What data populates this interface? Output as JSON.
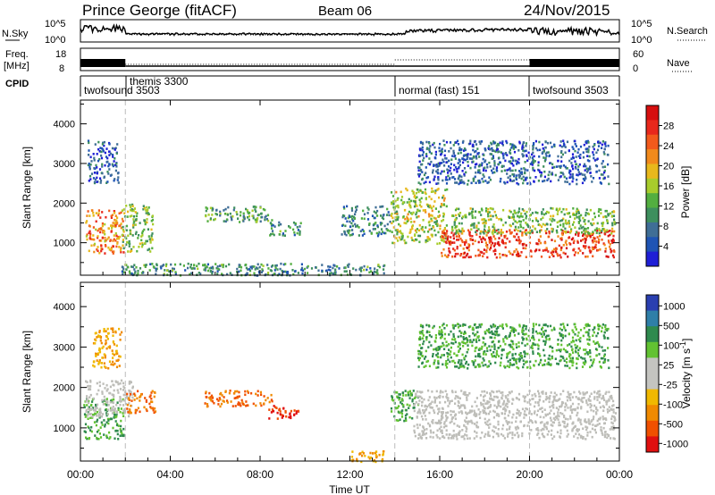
{
  "header": {
    "station": "Prince George (fitACF)",
    "beam": "Beam 06",
    "date": "24/Nov/2015"
  },
  "noise_panel": {
    "left_label": "N.Sky",
    "right_label": "N.Search",
    "y_ticks": [
      "10^5",
      "10^0"
    ]
  },
  "freq_panel": {
    "left_label_1": "Freq.",
    "left_label_2": "[MHz]",
    "right_label": "Nave",
    "left_ticks": [
      "18",
      "8"
    ],
    "right_ticks": [
      "60",
      "0"
    ]
  },
  "cpid_panel": {
    "label": "CPID",
    "programs": [
      {
        "name": "twofsound 3503",
        "start_hour": 0.0
      },
      {
        "name": "themis 3300",
        "start_hour": 2.0
      },
      {
        "name": "normal (fast) 151",
        "start_hour": 14.0
      },
      {
        "name": "twofsound 3503",
        "start_hour": 20.0
      }
    ]
  },
  "axes": {
    "ylabel": "Slant Range [km]",
    "xlabel": "Time UT",
    "x_tick_labels": [
      "00:00",
      "04:00",
      "08:00",
      "12:00",
      "16:00",
      "20:00",
      "00:00"
    ],
    "y_tick_labels": [
      "1000",
      "2000",
      "3000",
      "4000"
    ]
  },
  "colorbars": {
    "power": {
      "label": "Power [dB]",
      "tick_labels": [
        "4",
        "8",
        "12",
        "16",
        "20",
        "24",
        "28"
      ],
      "colors": [
        "#1f1fd6",
        "#1f54b4",
        "#3f6e96",
        "#3e8f5e",
        "#53ae40",
        "#a8cc2c",
        "#e8b81c",
        "#f18a1c",
        "#f25a1c",
        "#e8281c",
        "#d60f0f"
      ]
    },
    "velocity": {
      "label": "Velocity [m s",
      "label_sup": "-1",
      "label_end": "]",
      "tick_labels": [
        "1000",
        "500",
        "100",
        "25",
        "-25",
        "-100",
        "-500",
        "-1000"
      ],
      "colors": [
        "#2a3fb0",
        "#2f7fa8",
        "#2f8a4e",
        "#62c232",
        "#c4c4c0",
        "#c4c4c0",
        "#f0b800",
        "#f08a00",
        "#f05000",
        "#e01010"
      ],
      "ground_scatter_color": "#bdbdb8"
    }
  },
  "chart_data": {
    "type": "heatmap",
    "x_unit": "hours UT",
    "xlim": [
      0,
      24
    ],
    "ylim": [
      180,
      4600
    ],
    "power_panel": {
      "regions": [
        {
          "t0": 0.2,
          "t1": 1.9,
          "r0": 750,
          "r1": 1850,
          "value": 22
        },
        {
          "t0": 0.3,
          "t1": 1.7,
          "r0": 2500,
          "r1": 3600,
          "value": 6
        },
        {
          "t0": 1.8,
          "t1": 3.2,
          "r0": 800,
          "r1": 2000,
          "value": 14
        },
        {
          "t0": 5.5,
          "t1": 8.5,
          "r0": 1550,
          "r1": 1950,
          "value": 12
        },
        {
          "t0": 8.3,
          "t1": 9.8,
          "r0": 1200,
          "r1": 1550,
          "value": 10
        },
        {
          "t0": 1.8,
          "t1": 13.5,
          "r0": 200,
          "r1": 500,
          "value": 10
        },
        {
          "t0": 11.6,
          "t1": 13.8,
          "r0": 1200,
          "r1": 1950,
          "value": 9
        },
        {
          "t0": 13.8,
          "t1": 16.3,
          "r0": 1000,
          "r1": 2400,
          "value": 16
        },
        {
          "t0": 16.0,
          "t1": 23.8,
          "r0": 650,
          "r1": 1350,
          "value": 26
        },
        {
          "t0": 16.5,
          "t1": 23.8,
          "r0": 1250,
          "r1": 1900,
          "value": 14
        },
        {
          "t0": 15.0,
          "t1": 23.5,
          "r0": 2500,
          "r1": 3600,
          "value": 6
        }
      ]
    },
    "velocity_panel": {
      "regions": [
        {
          "t0": 0.1,
          "t1": 1.9,
          "r0": 750,
          "r1": 1750,
          "value": 100
        },
        {
          "t0": 0.2,
          "t1": 2.3,
          "r0": 1300,
          "r1": 2200,
          "value": 0,
          "ground_scatter": true
        },
        {
          "t0": 0.5,
          "t1": 1.8,
          "r0": 2500,
          "r1": 3500,
          "value": -100
        },
        {
          "t0": 2.0,
          "t1": 3.3,
          "r0": 1400,
          "r1": 1950,
          "value": -500
        },
        {
          "t0": 5.5,
          "t1": 8.5,
          "r0": 1550,
          "r1": 1950,
          "value": -500
        },
        {
          "t0": 8.3,
          "t1": 9.8,
          "r0": 1250,
          "r1": 1600,
          "value": -1000
        },
        {
          "t0": 12.0,
          "t1": 13.5,
          "r0": 180,
          "r1": 450,
          "value": -100
        },
        {
          "t0": 13.8,
          "t1": 15.0,
          "r0": 1200,
          "r1": 1950,
          "value": 100
        },
        {
          "t0": 14.8,
          "t1": 23.8,
          "r0": 750,
          "r1": 1950,
          "value": 0,
          "ground_scatter": true
        },
        {
          "t0": 15.0,
          "t1": 23.5,
          "r0": 2500,
          "r1": 3600,
          "value": 100
        }
      ]
    },
    "program_boundaries_hours": [
      2,
      14,
      20
    ]
  }
}
